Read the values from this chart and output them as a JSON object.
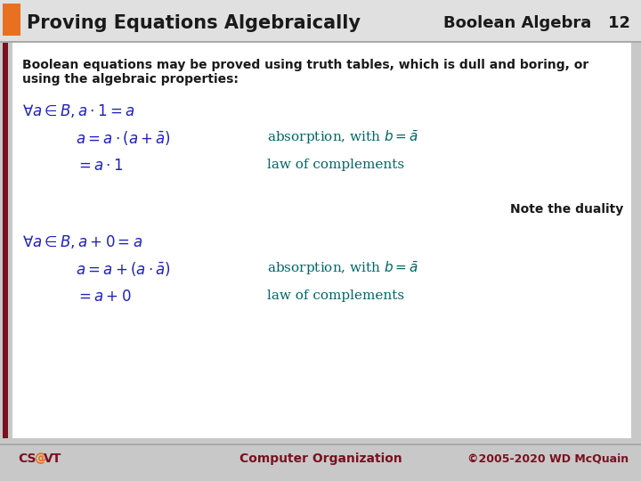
{
  "title": "Proving Equations Algebraically",
  "subtitle": "Boolean Algebra   12",
  "header_bg": "#E8E8E8",
  "orange_rect": "#E87020",
  "dark_red_line": "#7B1020",
  "title_color": "#1A1A1A",
  "subtitle_color": "#1A1A1A",
  "body_bg": "#FFFFFF",
  "outer_bg": "#C8C8C8",
  "intro_line1": "Boolean equations may be proved using truth tables, which is dull and boring, or",
  "intro_line2": "using the algebraic properties:",
  "intro_color": "#1A1A1A",
  "blue_color": "#2020BB",
  "teal_color": "#006666",
  "note_color": "#1A1A1A",
  "footer_color": "#7B1020",
  "footer_orange": "#E87020",
  "footer_center": "Computer Organization",
  "footer_right": "©2005-2020 WD McQuain"
}
